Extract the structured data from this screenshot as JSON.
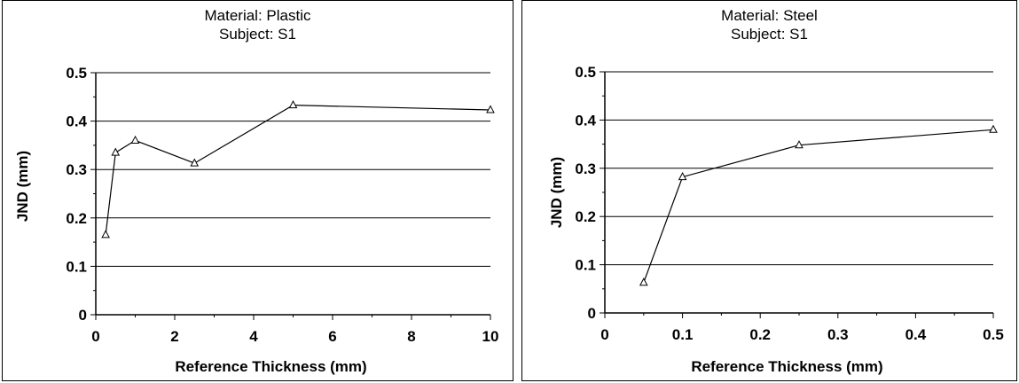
{
  "chart_data": [
    {
      "type": "line",
      "title_line1": "Material: Plastic",
      "title_line2": "Subject: S1",
      "xlabel": "Reference Thickness (mm)",
      "ylabel": "JND (mm)",
      "xlim": [
        0,
        10
      ],
      "ylim": [
        0,
        0.5
      ],
      "xticks": [
        0,
        2,
        4,
        6,
        8,
        10
      ],
      "xtick_labels": [
        "0",
        "2",
        "4",
        "6",
        "8",
        "10"
      ],
      "yticks": [
        0,
        0.1,
        0.2,
        0.3,
        0.4,
        0.5
      ],
      "ytick_labels": [
        "0",
        "0.1",
        "0.2",
        "0.3",
        "0.4",
        "0.5"
      ],
      "grid": "horizontal",
      "marker": "triangle",
      "x": [
        0.25,
        0.5,
        1,
        2.5,
        5,
        10
      ],
      "values": [
        0.165,
        0.335,
        0.36,
        0.313,
        0.433,
        0.423
      ]
    },
    {
      "type": "line",
      "title_line1": "Material: Steel",
      "title_line2": "Subject: S1",
      "xlabel": "Reference Thickness (mm)",
      "ylabel": "JND (mm)",
      "xlim": [
        0,
        0.5
      ],
      "ylim": [
        0,
        0.5
      ],
      "xticks": [
        0,
        0.1,
        0.2,
        0.3,
        0.4,
        0.5
      ],
      "xtick_labels": [
        "0",
        "0.1",
        "0.2",
        "0.3",
        "0.4",
        "0.5"
      ],
      "yticks": [
        0,
        0.1,
        0.2,
        0.3,
        0.4,
        0.5
      ],
      "ytick_labels": [
        "0",
        "0.1",
        "0.2",
        "0.3",
        "0.4",
        "0.5"
      ],
      "grid": "horizontal",
      "marker": "triangle",
      "x": [
        0.05,
        0.1,
        0.25,
        0.5
      ],
      "values": [
        0.063,
        0.282,
        0.348,
        0.38
      ]
    }
  ]
}
